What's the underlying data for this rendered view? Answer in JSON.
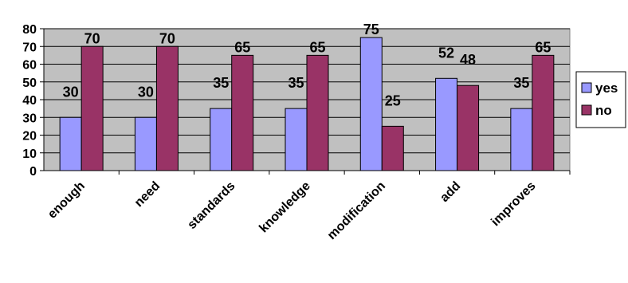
{
  "chart_data": {
    "type": "bar",
    "categories": [
      "enough",
      "need",
      "standards",
      "knowledge",
      "modification",
      "add",
      "improves"
    ],
    "series": [
      {
        "name": "yes",
        "values": [
          30,
          30,
          35,
          35,
          75,
          52,
          35
        ],
        "color": "#9999ff"
      },
      {
        "name": "no",
        "values": [
          70,
          70,
          65,
          65,
          25,
          48,
          65
        ],
        "color": "#993366"
      }
    ],
    "ylim": [
      0,
      80
    ],
    "yticks": [
      0,
      10,
      20,
      30,
      40,
      50,
      60,
      70,
      80
    ],
    "grid": true,
    "legend_position": "right",
    "plot_background": "#c0c0c0"
  }
}
